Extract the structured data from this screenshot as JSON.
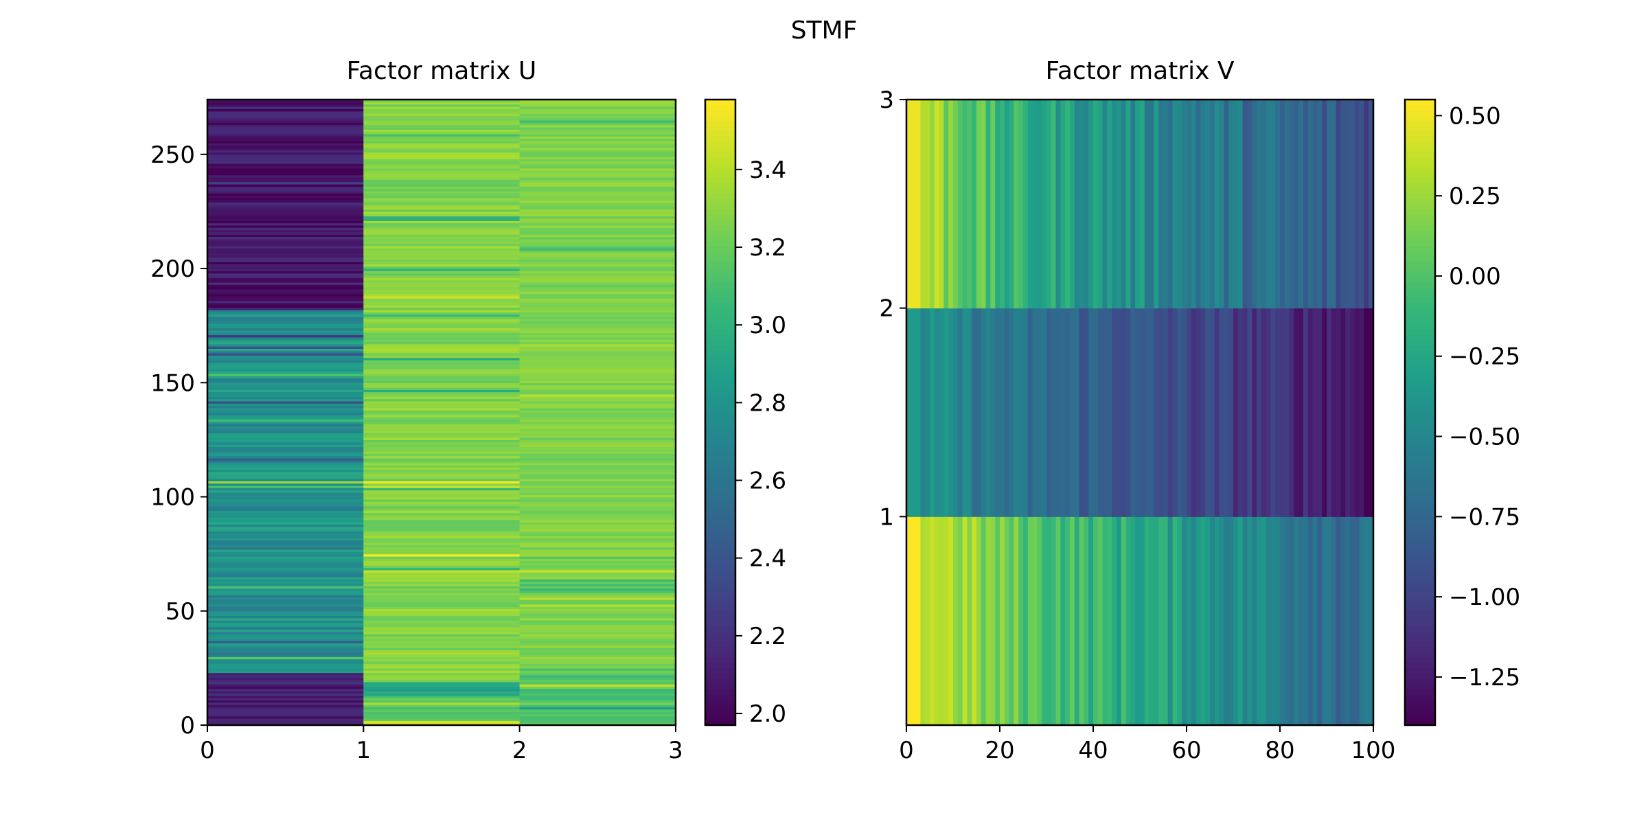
{
  "title": "STMF",
  "colormap": {
    "name": "viridis",
    "stops": [
      "#440154",
      "#482878",
      "#3e4989",
      "#31688e",
      "#26828e",
      "#1f9e89",
      "#35b779",
      "#6ece58",
      "#b5de2b",
      "#fde725"
    ]
  },
  "chart_data": [
    {
      "type": "heatmap",
      "title": "Factor matrix U",
      "xlabel": "",
      "ylabel": "",
      "xlim": [
        0,
        3
      ],
      "ylim": [
        0,
        274
      ],
      "x_ticks": [
        "0",
        "1",
        "2",
        "3"
      ],
      "y_ticks": [
        "0",
        "50",
        "100",
        "150",
        "200",
        "250"
      ],
      "columns": 3,
      "rows": 274,
      "clim": [
        1.97,
        3.58
      ],
      "colorbar_ticks": [
        "2.0",
        "2.2",
        "2.4",
        "2.6",
        "2.8",
        "3.0",
        "3.2",
        "3.4"
      ],
      "column_row_bands": [
        [
          {
            "from": 0,
            "to": 23,
            "base": 2.1,
            "spread": 0.12
          },
          {
            "from": 23,
            "to": 182,
            "base": 2.78,
            "spread": 0.16
          },
          {
            "from": 182,
            "to": 274,
            "base": 2.08,
            "spread": 0.12
          }
        ],
        [
          {
            "from": 0,
            "to": 2,
            "base": 3.5,
            "spread": 0.05
          },
          {
            "from": 2,
            "to": 13,
            "base": 3.15,
            "spread": 0.08
          },
          {
            "from": 13,
            "to": 19,
            "base": 2.92,
            "spread": 0.04
          },
          {
            "from": 19,
            "to": 274,
            "base": 3.28,
            "spread": 0.1
          }
        ],
        [
          {
            "from": 0,
            "to": 25,
            "base": 3.15,
            "spread": 0.1
          },
          {
            "from": 25,
            "to": 274,
            "base": 3.27,
            "spread": 0.07
          }
        ]
      ]
    },
    {
      "type": "heatmap",
      "title": "Factor matrix V",
      "xlabel": "",
      "ylabel": "",
      "xlim": [
        0,
        100
      ],
      "ylim": [
        0,
        3
      ],
      "x_ticks": [
        "0",
        "20",
        "40",
        "60",
        "80",
        "100"
      ],
      "y_ticks": [
        "1",
        "2",
        "3"
      ],
      "columns": 100,
      "rows": 3,
      "clim": [
        -1.4,
        0.55
      ],
      "colorbar_ticks": [
        "0.50",
        "0.25",
        "0.00",
        "−0.25",
        "−0.50",
        "−0.75",
        "−1.00",
        "−1.25"
      ],
      "row_profiles": [
        {
          "row": 0,
          "start": 0.5,
          "mid_col": 20,
          "mid": 0.1,
          "end": -0.75,
          "spread": 0.18
        },
        {
          "row": 1,
          "start": -0.4,
          "mid_col": 20,
          "mid": -0.65,
          "end": -1.3,
          "spread": 0.15
        },
        {
          "row": 2,
          "start": 0.45,
          "mid_col": 20,
          "mid": -0.15,
          "end": -0.95,
          "spread": 0.2
        }
      ]
    }
  ]
}
